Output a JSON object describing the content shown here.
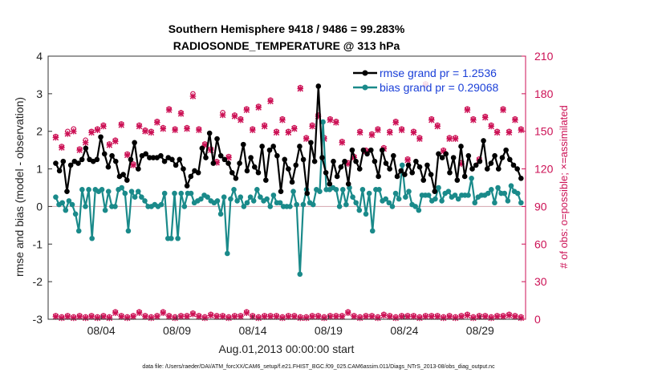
{
  "chart_data": {
    "type": "line",
    "title_line1": "Southern Hemisphere 9418 / 9486 = 99.283%",
    "title_line2": "RADIOSONDE_TEMPERATURE @ 313 hPa",
    "ylabel": "rmse and bias (model - observation)",
    "ylabel_right": "# of obs: o=possible; ×=assimilated",
    "xlabel": "Aug.01,2013 00:00:00 start",
    "footnote": "data file: /Users/raeder/DAI/ATM_forcXX/CAM6_setup/f.e21.FHIST_BGC.f09_025.CAM6assim.011/Diags_NTrS_2013-08/obs_diag_output.nc",
    "ylim": [
      -3,
      4
    ],
    "ylim_right": [
      0,
      210
    ],
    "xlim": [
      0.5,
      32.0
    ],
    "yticks": [
      "-3",
      "-2",
      "-1",
      "0",
      "1",
      "2",
      "3",
      "4"
    ],
    "yticks_right": [
      "0",
      "30",
      "60",
      "90",
      "120",
      "150",
      "180",
      "210"
    ],
    "xticks": [
      {
        "label": "08/04",
        "x": 4
      },
      {
        "label": "08/09",
        "x": 9
      },
      {
        "label": "08/14",
        "x": 14
      },
      {
        "label": "08/19",
        "x": 19
      },
      {
        "label": "08/24",
        "x": 24
      },
      {
        "label": "08/29",
        "x": 29
      }
    ],
    "series": [
      {
        "name": "rmse grand pr = 1.2536",
        "color": "#000000",
        "values": [
          1.15,
          0.95,
          1.2,
          0.4,
          1.1,
          1.2,
          1.15,
          1.25,
          1.55,
          1.25,
          1.2,
          1.25,
          1.85,
          1.4,
          1.05,
          1.35,
          1.2,
          0.8,
          0.85,
          0.7,
          1.25,
          1.7,
          1.0,
          1.35,
          1.4,
          1.3,
          1.3,
          1.3,
          1.35,
          1.2,
          1.3,
          1.25,
          1.1,
          1.25,
          1.0,
          0.55,
          0.8,
          0.95,
          0.9,
          1.55,
          1.3,
          1.95,
          1.15,
          1.8,
          1.35,
          1.25,
          1.15,
          0.9,
          0.75,
          1.15,
          1.65,
          0.95,
          1.3,
          1.05,
          0.9,
          1.6,
          0.7,
          1.5,
          1.6,
          1.35,
          0.4,
          1.25,
          1.0,
          0.65,
          1.1,
          1.6,
          1.25,
          0.35,
          1.7,
          1.2,
          3.2,
          1.3,
          0.9,
          0.6,
          1.2,
          0.8,
          1.05,
          1.2,
          0.6,
          1.5,
          1.2,
          1.0,
          1.5,
          1.4,
          1.5,
          1.2,
          0.8,
          1.5,
          1.15,
          1.0,
          1.35,
          0.8,
          0.95,
          0.85,
          1.1,
          0.9,
          1.2,
          1.05,
          0.7,
          1.1,
          0.85,
          0.4,
          1.4,
          1.3,
          1.4,
          0.9,
          1.3,
          0.7,
          1.6,
          0.8,
          1.35,
          1.0,
          1.1,
          1.2,
          1.75,
          1.0,
          1.15,
          1.35,
          1.0,
          1.3,
          1.5,
          1.25,
          1.1,
          1.0,
          0.75
        ]
      },
      {
        "name": "bias grand pr = 0.29068",
        "color": "#1a8a8a",
        "values": [
          0.25,
          0.05,
          0.1,
          -0.1,
          0.15,
          0.05,
          -0.2,
          -0.65,
          0.45,
          0.0,
          0.45,
          -0.85,
          0.45,
          0.4,
          0.45,
          -0.1,
          0.4,
          0.0,
          0.0,
          0.45,
          0.5,
          0.35,
          -0.65,
          0.4,
          0.25,
          0.4,
          0.25,
          0.15,
          0.0,
          0.0,
          0.05,
          0.0,
          0.05,
          0.35,
          -0.85,
          -0.85,
          0.35,
          -0.85,
          0.35,
          0.0,
          0.35,
          0.35,
          0.1,
          0.15,
          0.2,
          0.3,
          0.25,
          0.15,
          0.1,
          0.15,
          -0.2,
          0.25,
          -1.25,
          0.2,
          0.45,
          0.15,
          0.25,
          0.0,
          0.1,
          0.25,
          0.15,
          0.45,
          0.25,
          0.15,
          0.2,
          0.0,
          0.3,
          0.1,
          0.1,
          0.0,
          0.0,
          0.0,
          0.4,
          0.05,
          -1.8,
          0.05,
          0.45,
          0.1,
          0.05,
          0.45,
          0.4,
          2.25,
          0.45,
          0.45,
          0.5,
          0.45,
          0.0,
          0.45,
          0.05,
          0.5,
          0.25,
          0.1,
          -0.1,
          0.45,
          -0.2,
          0.35,
          -0.65,
          0.45,
          0.45,
          0.15,
          0.2,
          0.1,
          0.0,
          0.35,
          0.2,
          1.1,
          0.25,
          0.4,
          0.05,
          0.0,
          -0.1,
          0.3,
          0.3,
          0.3,
          0.15,
          0.2,
          0.5,
          0.15,
          0.35,
          0.4,
          0.25,
          0.3,
          0.2,
          0.3,
          0.3,
          0.3,
          0.75,
          0.1,
          0.25,
          0.3,
          0.3,
          0.35,
          0.45,
          0.1,
          0.5,
          0.35,
          0.35,
          0.15,
          0.55,
          0.4,
          0.35,
          0.1
        ]
      }
    ],
    "obs_possible": [
      146,
      138,
      150,
      152,
      136,
      143,
      150,
      152,
      155,
      140,
      143,
      156,
      132,
      124,
      155,
      151,
      150,
      158,
      153,
      168,
      152,
      165,
      153,
      180,
      152,
      140,
      136,
      126,
      165,
      130,
      163,
      160,
      168,
      152,
      170,
      155,
      175,
      150,
      160,
      150,
      153,
      185,
      145,
      155,
      163,
      145,
      160,
      158,
      142,
      125,
      130,
      150,
      135,
      148,
      152,
      137,
      150,
      158,
      152,
      128,
      150,
      145,
      188,
      160,
      155,
      135,
      145,
      145,
      125,
      168,
      160,
      128,
      162,
      155,
      150,
      168,
      150,
      160,
      152
    ],
    "obs_assimilated": [
      145,
      137,
      148,
      150,
      135,
      141,
      149,
      151,
      154,
      139,
      142,
      155,
      131,
      123,
      154,
      150,
      149,
      157,
      152,
      167,
      151,
      164,
      152,
      178,
      151,
      139,
      135,
      125,
      163,
      129,
      162,
      159,
      167,
      151,
      169,
      154,
      174,
      149,
      159,
      149,
      152,
      184,
      144,
      154,
      162,
      144,
      159,
      157,
      141,
      124,
      129,
      149,
      134,
      147,
      151,
      136,
      149,
      157,
      151,
      127,
      149,
      144,
      187,
      159,
      154,
      134,
      144,
      144,
      124,
      167,
      159,
      127,
      161,
      154,
      149,
      167,
      149,
      159,
      151
    ],
    "obs_bottom_possible": [
      3,
      2,
      3,
      2,
      3,
      2,
      3,
      2,
      3,
      2,
      6,
      3,
      2,
      3,
      6,
      3,
      2,
      3,
      6,
      3,
      2,
      3,
      3,
      5,
      3,
      2,
      4,
      3,
      3,
      2,
      3,
      3,
      6,
      3,
      2,
      3,
      3,
      3,
      2,
      3,
      3,
      2,
      2,
      3,
      3,
      2,
      3,
      3,
      3,
      6,
      3,
      2,
      3,
      3,
      2,
      4,
      3,
      2,
      3,
      3,
      3,
      2,
      3,
      3,
      3,
      2,
      3,
      2,
      3,
      4,
      2,
      3,
      3,
      2,
      3,
      3,
      4,
      3,
      2
    ],
    "obs_bottom_assimilated": [
      2,
      1,
      2,
      1,
      2,
      1,
      2,
      1,
      2,
      1,
      5,
      2,
      1,
      2,
      5,
      2,
      1,
      2,
      5,
      2,
      1,
      2,
      2,
      4,
      2,
      1,
      3,
      2,
      2,
      1,
      2,
      2,
      5,
      2,
      1,
      2,
      2,
      2,
      1,
      2,
      2,
      1,
      1,
      2,
      2,
      1,
      2,
      2,
      2,
      5,
      2,
      1,
      2,
      2,
      1,
      3,
      2,
      1,
      2,
      2,
      2,
      1,
      2,
      2,
      2,
      1,
      2,
      1,
      2,
      3,
      1,
      2,
      2,
      1,
      2,
      2,
      3,
      2,
      1
    ],
    "obs_color": "#cc1155"
  }
}
